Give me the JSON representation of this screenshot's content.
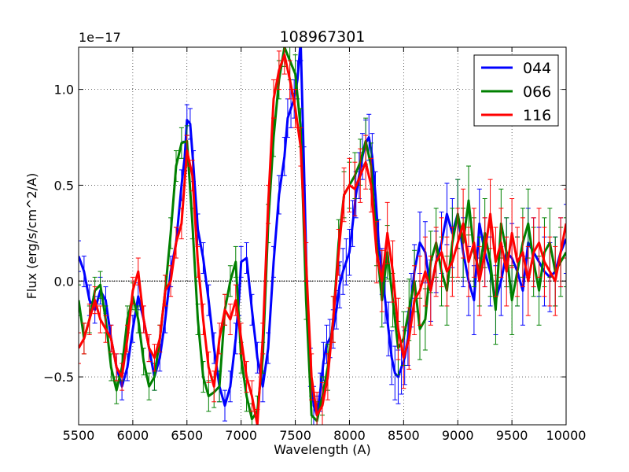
{
  "chart_data": {
    "type": "line",
    "title": "108967301",
    "xlabel": "Wavelength (A)",
    "ylabel": "Flux (erg/s/cm^2/A)",
    "offset_label": "1e−17",
    "xlim": [
      5500,
      10000
    ],
    "ylim": [
      -0.75,
      1.22
    ],
    "x_ticks": [
      5500,
      6000,
      6500,
      7000,
      7500,
      8000,
      8500,
      9000,
      9500,
      10000
    ],
    "x_tick_labels": [
      "5500",
      "6000",
      "6500",
      "7000",
      "7500",
      "8000",
      "8500",
      "9000",
      "9500",
      "10000"
    ],
    "y_ticks": [
      -0.5,
      0.0,
      0.5,
      1.0
    ],
    "y_tick_labels": [
      "−0.5",
      "0.0",
      "0.5",
      "1.0"
    ],
    "grid": true,
    "legend_position": "top-right",
    "series": [
      {
        "name": "044",
        "color": "#0000ff",
        "x": [
          5500,
          5550,
          5600,
          5650,
          5700,
          5750,
          5800,
          5850,
          5900,
          5950,
          6000,
          6050,
          6100,
          6150,
          6200,
          6250,
          6300,
          6350,
          6400,
          6450,
          6480,
          6500,
          6530,
          6560,
          6600,
          6650,
          6700,
          6750,
          6800,
          6850,
          6900,
          6950,
          6980,
          7000,
          7050,
          7100,
          7150,
          7200,
          7250,
          7300,
          7350,
          7400,
          7430,
          7460,
          7490,
          7520,
          7550,
          7580,
          7610,
          7640,
          7670,
          7700,
          7730,
          7760,
          7790,
          7820,
          7850,
          7880,
          7910,
          7940,
          7970,
          8000,
          8030,
          8060,
          8090,
          8120,
          8150,
          8180,
          8210,
          8240,
          8270,
          8300,
          8330,
          8360,
          8390,
          8420,
          8450,
          8480,
          8510,
          8540,
          8570,
          8600,
          8650,
          8700,
          8750,
          8800,
          8850,
          8900,
          8950,
          9000,
          9050,
          9100,
          9150,
          9200,
          9250,
          9300,
          9350,
          9400,
          9450,
          9500,
          9550,
          9600,
          9650,
          9700,
          9750,
          9800,
          9850,
          9900,
          9950,
          10000
        ],
        "y": [
          0.13,
          0.05,
          -0.1,
          -0.15,
          -0.05,
          -0.1,
          -0.3,
          -0.45,
          -0.55,
          -0.45,
          -0.25,
          -0.08,
          -0.2,
          -0.35,
          -0.5,
          -0.4,
          -0.2,
          0.05,
          0.2,
          0.5,
          0.65,
          0.84,
          0.82,
          0.6,
          0.27,
          0.12,
          -0.1,
          -0.35,
          -0.55,
          -0.65,
          -0.55,
          -0.3,
          -0.1,
          0.1,
          0.12,
          -0.15,
          -0.4,
          -0.55,
          -0.35,
          0.1,
          0.45,
          0.65,
          0.85,
          0.9,
          0.95,
          1.05,
          1.25,
          0.6,
          -0.1,
          -0.45,
          -0.65,
          -0.7,
          -0.58,
          -0.42,
          -0.33,
          -0.3,
          -0.25,
          -0.15,
          -0.02,
          0.05,
          0.1,
          0.15,
          0.3,
          0.45,
          0.55,
          0.65,
          0.72,
          0.75,
          0.65,
          0.45,
          0.2,
          0.05,
          -0.1,
          -0.25,
          -0.4,
          -0.48,
          -0.5,
          -0.45,
          -0.4,
          -0.3,
          -0.1,
          0.05,
          0.2,
          0.15,
          -0.05,
          0.1,
          0.2,
          0.35,
          0.25,
          0.35,
          0.15,
          0.0,
          -0.1,
          0.3,
          0.15,
          0.05,
          -0.1,
          0.0,
          0.15,
          0.12,
          0.05,
          -0.05,
          0.2,
          0.15,
          0.1,
          0.05,
          0.02,
          0.05,
          0.15,
          0.22
        ],
        "err": [
          0.08,
          0.08,
          0.08,
          0.07,
          0.07,
          0.07,
          0.07,
          0.07,
          0.07,
          0.07,
          0.07,
          0.07,
          0.07,
          0.07,
          0.07,
          0.07,
          0.07,
          0.08,
          0.08,
          0.08,
          0.08,
          0.08,
          0.08,
          0.08,
          0.08,
          0.08,
          0.08,
          0.08,
          0.08,
          0.08,
          0.08,
          0.08,
          0.08,
          0.08,
          0.08,
          0.08,
          0.08,
          0.08,
          0.08,
          0.08,
          0.1,
          0.1,
          0.1,
          0.1,
          0.1,
          0.1,
          0.1,
          0.1,
          0.1,
          0.1,
          0.1,
          0.1,
          0.1,
          0.1,
          0.1,
          0.1,
          0.1,
          0.1,
          0.12,
          0.12,
          0.12,
          0.12,
          0.12,
          0.12,
          0.12,
          0.12,
          0.12,
          0.12,
          0.12,
          0.12,
          0.12,
          0.12,
          0.12,
          0.14,
          0.14,
          0.14,
          0.14,
          0.14,
          0.14,
          0.14,
          0.14,
          0.14,
          0.16,
          0.16,
          0.16,
          0.16,
          0.16,
          0.16,
          0.18,
          0.18,
          0.18,
          0.18,
          0.18,
          0.18,
          0.18,
          0.18,
          0.18,
          0.18,
          0.18,
          0.18,
          0.18,
          0.18,
          0.18,
          0.18,
          0.18,
          0.18,
          0.18,
          0.18,
          0.18,
          0.18
        ]
      },
      {
        "name": "066",
        "color": "#008000",
        "x": [
          5500,
          5550,
          5600,
          5650,
          5700,
          5750,
          5800,
          5850,
          5900,
          5950,
          6000,
          6050,
          6100,
          6150,
          6200,
          6250,
          6300,
          6350,
          6400,
          6450,
          6500,
          6550,
          6600,
          6650,
          6700,
          6750,
          6800,
          6850,
          6900,
          6950,
          7000,
          7050,
          7100,
          7150,
          7200,
          7250,
          7300,
          7350,
          7400,
          7450,
          7500,
          7550,
          7600,
          7650,
          7700,
          7750,
          7800,
          7850,
          7900,
          7950,
          8000,
          8050,
          8100,
          8150,
          8200,
          8250,
          8300,
          8350,
          8400,
          8450,
          8500,
          8550,
          8600,
          8650,
          8700,
          8750,
          8800,
          8850,
          8900,
          8950,
          9000,
          9050,
          9100,
          9150,
          9200,
          9250,
          9300,
          9350,
          9400,
          9450,
          9500,
          9550,
          9600,
          9650,
          9700,
          9750,
          9800,
          9850,
          9900,
          9950,
          10000
        ],
        "y": [
          -0.1,
          -0.3,
          -0.2,
          -0.05,
          -0.02,
          -0.2,
          -0.45,
          -0.57,
          -0.45,
          -0.2,
          -0.08,
          -0.2,
          -0.42,
          -0.55,
          -0.5,
          -0.3,
          -0.05,
          0.25,
          0.6,
          0.72,
          0.73,
          0.3,
          -0.2,
          -0.5,
          -0.6,
          -0.58,
          -0.55,
          -0.15,
          0.0,
          0.1,
          -0.4,
          -0.6,
          -0.72,
          -0.68,
          -0.4,
          0.3,
          0.75,
          1.05,
          1.22,
          1.15,
          1.08,
          0.8,
          -0.1,
          -0.7,
          -0.73,
          -0.6,
          -0.45,
          -0.2,
          0.2,
          0.45,
          0.5,
          0.55,
          0.62,
          0.73,
          0.6,
          0.2,
          -0.1,
          0.15,
          -0.1,
          -0.35,
          -0.3,
          -0.15,
          0.0,
          -0.25,
          -0.2,
          0.1,
          0.2,
          0.05,
          -0.05,
          0.2,
          0.35,
          0.2,
          0.42,
          0.15,
          0.05,
          0.25,
          0.1,
          -0.15,
          0.3,
          0.15,
          -0.1,
          0.05,
          0.2,
          0.3,
          0.1,
          -0.05,
          0.15,
          0.2,
          0.05,
          0.1,
          0.15
        ],
        "err": [
          0.08,
          0.08,
          0.07,
          0.07,
          0.07,
          0.07,
          0.07,
          0.07,
          0.07,
          0.07,
          0.07,
          0.07,
          0.07,
          0.07,
          0.07,
          0.07,
          0.08,
          0.08,
          0.08,
          0.08,
          0.08,
          0.08,
          0.08,
          0.08,
          0.08,
          0.08,
          0.08,
          0.08,
          0.08,
          0.08,
          0.08,
          0.08,
          0.08,
          0.08,
          0.08,
          0.1,
          0.1,
          0.1,
          0.1,
          0.1,
          0.1,
          0.1,
          0.1,
          0.1,
          0.1,
          0.1,
          0.12,
          0.12,
          0.12,
          0.12,
          0.12,
          0.12,
          0.12,
          0.12,
          0.12,
          0.12,
          0.14,
          0.14,
          0.14,
          0.14,
          0.14,
          0.16,
          0.16,
          0.16,
          0.16,
          0.16,
          0.18,
          0.18,
          0.18,
          0.18,
          0.18,
          0.18,
          0.18,
          0.18,
          0.18,
          0.18,
          0.18,
          0.18,
          0.18,
          0.18,
          0.18,
          0.18,
          0.18,
          0.18,
          0.18,
          0.18,
          0.18,
          0.18,
          0.18,
          0.18,
          0.18
        ]
      },
      {
        "name": "116",
        "color": "#ff0000",
        "x": [
          5500,
          5550,
          5600,
          5650,
          5700,
          5750,
          5800,
          5850,
          5900,
          5950,
          6000,
          6050,
          6100,
          6150,
          6200,
          6250,
          6300,
          6350,
          6400,
          6450,
          6500,
          6550,
          6600,
          6650,
          6700,
          6750,
          6800,
          6850,
          6900,
          6950,
          7000,
          7050,
          7100,
          7150,
          7200,
          7250,
          7300,
          7350,
          7400,
          7450,
          7500,
          7550,
          7600,
          7650,
          7700,
          7750,
          7800,
          7850,
          7900,
          7950,
          8000,
          8050,
          8100,
          8150,
          8200,
          8250,
          8300,
          8350,
          8400,
          8450,
          8500,
          8550,
          8600,
          8650,
          8700,
          8750,
          8800,
          8850,
          8900,
          8950,
          9000,
          9050,
          9100,
          9150,
          9200,
          9250,
          9300,
          9350,
          9400,
          9450,
          9500,
          9550,
          9600,
          9650,
          9700,
          9750,
          9800,
          9850,
          9900,
          9950,
          10000
        ],
        "y": [
          -0.35,
          -0.3,
          -0.2,
          -0.1,
          -0.2,
          -0.25,
          -0.3,
          -0.45,
          -0.5,
          -0.3,
          -0.05,
          0.05,
          -0.2,
          -0.35,
          -0.4,
          -0.3,
          -0.05,
          0.0,
          0.2,
          0.3,
          0.68,
          0.55,
          0.1,
          -0.2,
          -0.45,
          -0.55,
          -0.3,
          -0.15,
          -0.2,
          -0.1,
          -0.3,
          -0.5,
          -0.6,
          -0.75,
          -0.3,
          0.4,
          0.95,
          1.1,
          1.18,
          1.05,
          0.9,
          0.7,
          0.1,
          -0.5,
          -0.7,
          -0.65,
          -0.5,
          -0.2,
          0.15,
          0.45,
          0.5,
          0.48,
          0.55,
          0.62,
          0.5,
          0.15,
          0.0,
          0.25,
          0.05,
          -0.25,
          -0.4,
          -0.3,
          -0.1,
          -0.05,
          0.05,
          -0.05,
          0.1,
          0.15,
          0.05,
          0.1,
          0.2,
          0.3,
          0.1,
          0.2,
          0.0,
          0.15,
          0.35,
          0.1,
          0.2,
          0.05,
          0.25,
          0.1,
          0.15,
          0.0,
          0.15,
          0.2,
          0.1,
          0.05,
          0.0,
          0.15,
          0.3
        ],
        "err": [
          0.08,
          0.08,
          0.08,
          0.07,
          0.07,
          0.07,
          0.07,
          0.07,
          0.07,
          0.07,
          0.07,
          0.07,
          0.07,
          0.07,
          0.07,
          0.07,
          0.08,
          0.08,
          0.08,
          0.08,
          0.08,
          0.08,
          0.08,
          0.08,
          0.08,
          0.08,
          0.08,
          0.08,
          0.08,
          0.08,
          0.08,
          0.08,
          0.08,
          0.08,
          0.08,
          0.1,
          0.1,
          0.1,
          0.1,
          0.1,
          0.1,
          0.1,
          0.1,
          0.12,
          0.12,
          0.12,
          0.12,
          0.12,
          0.12,
          0.14,
          0.14,
          0.14,
          0.14,
          0.14,
          0.14,
          0.16,
          0.16,
          0.16,
          0.16,
          0.16,
          0.16,
          0.16,
          0.18,
          0.18,
          0.18,
          0.18,
          0.18,
          0.18,
          0.18,
          0.18,
          0.18,
          0.18,
          0.18,
          0.18,
          0.18,
          0.18,
          0.18,
          0.18,
          0.18,
          0.18,
          0.18,
          0.18,
          0.18,
          0.18,
          0.18,
          0.18,
          0.18,
          0.18,
          0.18,
          0.18,
          0.18
        ]
      }
    ]
  }
}
